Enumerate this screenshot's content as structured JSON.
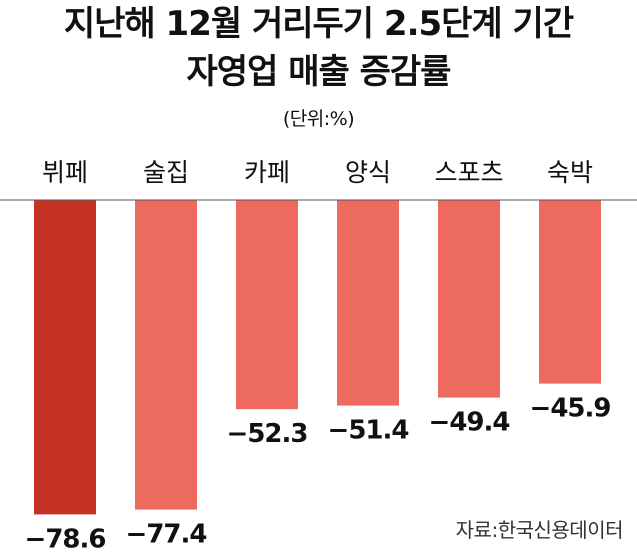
{
  "title_line1": "지난해 12월 거리두기 2.5단계 기간",
  "title_line2": "자영업 매출 증감률",
  "unit": "(단위:%)",
  "source": "자료:한국신용데이터",
  "colors": {
    "highlight": "#c63224",
    "bar": "#ed6b5e",
    "baseline": "#555555"
  },
  "chart_data": {
    "type": "bar",
    "title": "지난해 12월 거리두기 2.5단계 기간 자영업 매출 증감률",
    "categories": [
      "뷔페",
      "술집",
      "카페",
      "양식",
      "스포츠",
      "숙박"
    ],
    "values": [
      -78.6,
      -77.4,
      -52.3,
      -51.4,
      -49.4,
      -45.9
    ],
    "value_labels": [
      "−78.6",
      "−77.4",
      "−52.3",
      "−51.4",
      "−49.4",
      "−45.9"
    ],
    "ylim": [
      -80,
      0
    ],
    "highlight_index": 0,
    "grid": false,
    "legend": "none"
  }
}
